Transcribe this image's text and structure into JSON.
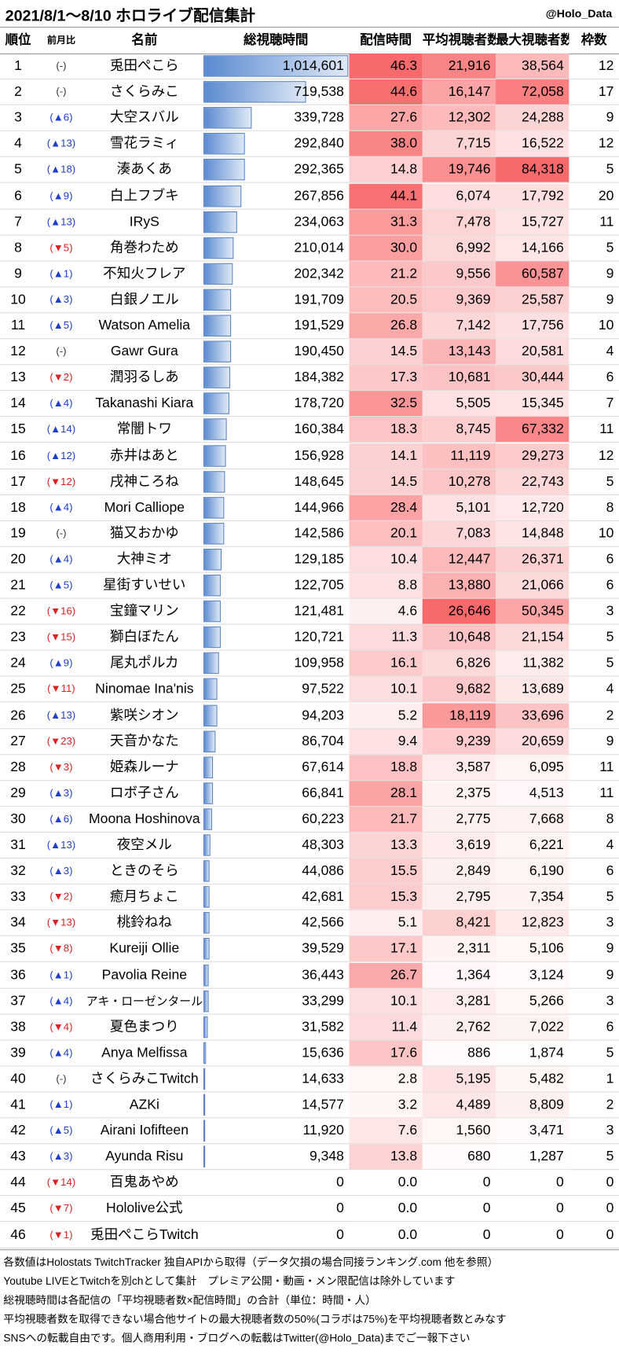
{
  "header": {
    "title": "2021/8/1～8/10 ホロライブ配信集計",
    "credit": "@Holo_Data"
  },
  "table": {
    "columns": [
      "順位",
      "前月比",
      "名前",
      "総視聴時間",
      "配信時間",
      "平均視聴者数",
      "最大視聴者数",
      "枠数"
    ],
    "rows": [
      [
        "1",
        "(-)",
        "兎田ぺこら",
        "1,014,601",
        "46.3",
        "21,916",
        "38,564",
        "12"
      ],
      [
        "2",
        "(-)",
        "さくらみこ",
        "719,538",
        "44.6",
        "16,147",
        "72,058",
        "17"
      ],
      [
        "3",
        "(▲6)",
        "大空スバル",
        "339,728",
        "27.6",
        "12,302",
        "24,288",
        "9"
      ],
      [
        "4",
        "(▲13)",
        "雪花ラミィ",
        "292,840",
        "38.0",
        "7,715",
        "16,522",
        "12"
      ],
      [
        "5",
        "(▲18)",
        "湊あくあ",
        "292,365",
        "14.8",
        "19,746",
        "84,318",
        "5"
      ],
      [
        "6",
        "(▲9)",
        "白上フブキ",
        "267,856",
        "44.1",
        "6,074",
        "17,792",
        "20"
      ],
      [
        "7",
        "(▲13)",
        "IRyS",
        "234,063",
        "31.3",
        "7,478",
        "15,727",
        "11"
      ],
      [
        "8",
        "(▼5)",
        "角巻わため",
        "210,014",
        "30.0",
        "6,992",
        "14,166",
        "5"
      ],
      [
        "9",
        "(▲1)",
        "不知火フレア",
        "202,342",
        "21.2",
        "9,556",
        "60,587",
        "9"
      ],
      [
        "10",
        "(▲3)",
        "白銀ノエル",
        "191,709",
        "20.5",
        "9,369",
        "25,587",
        "9"
      ],
      [
        "11",
        "(▲5)",
        "Watson Amelia",
        "191,529",
        "26.8",
        "7,142",
        "17,756",
        "10"
      ],
      [
        "12",
        "(-)",
        "Gawr Gura",
        "190,450",
        "14.5",
        "13,143",
        "20,581",
        "4"
      ],
      [
        "13",
        "(▼2)",
        "潤羽るしあ",
        "184,382",
        "17.3",
        "10,681",
        "30,444",
        "6"
      ],
      [
        "14",
        "(▲4)",
        "Takanashi Kiara",
        "178,720",
        "32.5",
        "5,505",
        "15,345",
        "7"
      ],
      [
        "15",
        "(▲14)",
        "常闇トワ",
        "160,384",
        "18.3",
        "8,745",
        "67,332",
        "11"
      ],
      [
        "16",
        "(▲12)",
        "赤井はあと",
        "156,928",
        "14.1",
        "11,119",
        "29,273",
        "12"
      ],
      [
        "17",
        "(▼12)",
        "戌神ころね",
        "148,645",
        "14.5",
        "10,278",
        "22,743",
        "5"
      ],
      [
        "18",
        "(▲4)",
        "Mori Calliope",
        "144,966",
        "28.4",
        "5,101",
        "12,720",
        "8"
      ],
      [
        "19",
        "(-)",
        "猫又おかゆ",
        "142,586",
        "20.1",
        "7,083",
        "14,848",
        "10"
      ],
      [
        "20",
        "(▲4)",
        "大神ミオ",
        "129,185",
        "10.4",
        "12,447",
        "26,371",
        "6"
      ],
      [
        "21",
        "(▲5)",
        "星街すいせい",
        "122,705",
        "8.8",
        "13,880",
        "21,066",
        "6"
      ],
      [
        "22",
        "(▼16)",
        "宝鐘マリン",
        "121,481",
        "4.6",
        "26,646",
        "50,345",
        "3"
      ],
      [
        "23",
        "(▼15)",
        "獅白ぼたん",
        "120,721",
        "11.3",
        "10,648",
        "21,154",
        "5"
      ],
      [
        "24",
        "(▲9)",
        "尾丸ポルカ",
        "109,958",
        "16.1",
        "6,826",
        "11,382",
        "5"
      ],
      [
        "25",
        "(▼11)",
        "Ninomae Ina'nis",
        "97,522",
        "10.1",
        "9,682",
        "13,689",
        "4"
      ],
      [
        "26",
        "(▲13)",
        "紫咲シオン",
        "94,203",
        "5.2",
        "18,119",
        "33,696",
        "2"
      ],
      [
        "27",
        "(▼23)",
        "天音かなた",
        "86,704",
        "9.4",
        "9,239",
        "20,659",
        "9"
      ],
      [
        "28",
        "(▼3)",
        "姫森ルーナ",
        "67,614",
        "18.8",
        "3,587",
        "6,095",
        "11"
      ],
      [
        "29",
        "(▲3)",
        "ロボ子さん",
        "66,841",
        "28.1",
        "2,375",
        "4,513",
        "11"
      ],
      [
        "30",
        "(▲6)",
        "Moona Hoshinova",
        "60,223",
        "21.7",
        "2,775",
        "7,668",
        "8"
      ],
      [
        "31",
        "(▲13)",
        "夜空メル",
        "48,303",
        "13.3",
        "3,619",
        "6,221",
        "4"
      ],
      [
        "32",
        "(▲3)",
        "ときのそら",
        "44,086",
        "15.5",
        "2,849",
        "6,190",
        "6"
      ],
      [
        "33",
        "(▼2)",
        "癒月ちょこ",
        "42,681",
        "15.3",
        "2,795",
        "7,354",
        "5"
      ],
      [
        "34",
        "(▼13)",
        "桃鈴ねね",
        "42,566",
        "5.1",
        "8,421",
        "12,823",
        "3"
      ],
      [
        "35",
        "(▼8)",
        "Kureiji Ollie",
        "39,529",
        "17.1",
        "2,311",
        "5,106",
        "9"
      ],
      [
        "36",
        "(▲1)",
        "Pavolia Reine",
        "36,443",
        "26.7",
        "1,364",
        "3,124",
        "9"
      ],
      [
        "37",
        "(▲4)",
        "アキ・ローゼンタール",
        "33,299",
        "10.1",
        "3,281",
        "5,266",
        "3"
      ],
      [
        "38",
        "(▼4)",
        "夏色まつり",
        "31,582",
        "11.4",
        "2,762",
        "7,022",
        "6"
      ],
      [
        "39",
        "(▲4)",
        "Anya Melfissa",
        "15,636",
        "17.6",
        "886",
        "1,874",
        "5"
      ],
      [
        "40",
        "(-)",
        "さくらみこTwitch",
        "14,633",
        "2.8",
        "5,195",
        "5,482",
        "1"
      ],
      [
        "41",
        "(▲1)",
        "AZKi",
        "14,577",
        "3.2",
        "4,489",
        "8,809",
        "2"
      ],
      [
        "42",
        "(▲5)",
        "Airani Iofifteen",
        "11,920",
        "7.6",
        "1,560",
        "3,471",
        "3"
      ],
      [
        "43",
        "(▲3)",
        "Ayunda Risu",
        "9,348",
        "13.8",
        "680",
        "1,287",
        "5"
      ],
      [
        "44",
        "(▼14)",
        "百鬼あやめ",
        "0",
        "0.0",
        "0",
        "0",
        "0"
      ],
      [
        "45",
        "(▼7)",
        "Hololive公式",
        "0",
        "0.0",
        "0",
        "0",
        "0"
      ],
      [
        "46",
        "(▼1)",
        "兎田ぺこらTwitch",
        "0",
        "0.0",
        "0",
        "0",
        "0"
      ]
    ]
  },
  "footer": {
    "lines": [
      "各数値はHolostats TwitchTracker 独自APIから取得（データ欠損の場合同接ランキング.com 他を参照）",
      "Youtube LIVEとTwitchを別chとして集計　プレミア公開・動画・メン限配信は除外しています",
      "総視聴時間は各配信の「平均視聴者数×配信時間」の合計（単位：時間・人）",
      "平均視聴者数を取得できない場合他サイトの最大視聴者数の50%(コラボは75%)を平均視聴者数とみなす",
      "SNSへの転載自由です。個人商用利用・ブログへの転載はTwitter(@Holo_Data)までご一報下さい"
    ]
  }
}
